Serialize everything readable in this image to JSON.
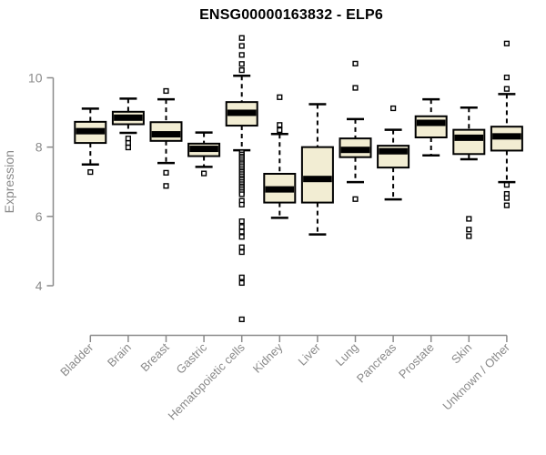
{
  "title": "ENSG00000163832 - ELP6",
  "chart_data": {
    "type": "boxplot",
    "title": "ENSG00000163832 - ELP6",
    "xlabel": "",
    "ylabel": "Expression",
    "yticks": [
      4,
      6,
      8,
      10
    ],
    "ylim": [
      2.8,
      11.5
    ],
    "grid": false,
    "legend": "none",
    "categories": [
      "Bladder",
      "Brain",
      "Breast",
      "Gastric",
      "Hematopoietic cells",
      "Kidney",
      "Liver",
      "Lung",
      "Pancreas",
      "Prostate",
      "Skin",
      "Unknown / Other"
    ],
    "series": [
      {
        "category": "Bladder",
        "whisker_low": 7.5,
        "q1": 8.12,
        "median": 8.46,
        "q3": 8.73,
        "whisker_high": 9.11,
        "outliers": [
          7.28
        ]
      },
      {
        "category": "Brain",
        "whisker_low": 8.41,
        "q1": 8.66,
        "median": 8.85,
        "q3": 9.02,
        "whisker_high": 9.4,
        "outliers": [
          8.25,
          8.12,
          7.99
        ]
      },
      {
        "category": "Breast",
        "whisker_low": 7.54,
        "q1": 8.18,
        "median": 8.37,
        "q3": 8.72,
        "whisker_high": 9.38,
        "outliers": [
          9.62,
          7.26,
          6.88
        ]
      },
      {
        "category": "Gastric",
        "whisker_low": 7.43,
        "q1": 7.74,
        "median": 7.95,
        "q3": 8.1,
        "whisker_high": 8.42,
        "outliers": [
          7.24
        ]
      },
      {
        "category": "Hematopoietic cells",
        "whisker_low": 7.91,
        "q1": 8.62,
        "median": 8.99,
        "q3": 9.3,
        "whisker_high": 10.06,
        "outliers": [
          11.15,
          10.92,
          10.66,
          10.4,
          10.22,
          7.85,
          7.79,
          7.73,
          7.68,
          7.62,
          7.56,
          7.51,
          7.45,
          7.39,
          7.33,
          7.28,
          7.22,
          7.16,
          7.1,
          7.05,
          6.99,
          6.93,
          6.87,
          6.82,
          6.76,
          6.7,
          6.64,
          6.45,
          6.34,
          5.86,
          5.7,
          5.56,
          5.41,
          5.11,
          4.97,
          4.24,
          4.08,
          3.03
        ]
      },
      {
        "category": "Kidney",
        "whisker_low": 5.96,
        "q1": 6.4,
        "median": 6.78,
        "q3": 7.23,
        "whisker_high": 8.38,
        "outliers": [
          9.44,
          8.64,
          8.49
        ]
      },
      {
        "category": "Liver",
        "whisker_low": 5.48,
        "q1": 6.4,
        "median": 7.08,
        "q3": 8.0,
        "whisker_high": 9.24,
        "outliers": []
      },
      {
        "category": "Lung",
        "whisker_low": 6.99,
        "q1": 7.71,
        "median": 7.92,
        "q3": 8.25,
        "whisker_high": 8.81,
        "outliers": [
          10.41,
          9.71,
          6.5
        ]
      },
      {
        "category": "Pancreas",
        "whisker_low": 6.49,
        "q1": 7.41,
        "median": 7.88,
        "q3": 8.04,
        "whisker_high": 8.5,
        "outliers": [
          9.12
        ]
      },
      {
        "category": "Prostate",
        "whisker_low": 7.76,
        "q1": 8.28,
        "median": 8.7,
        "q3": 8.89,
        "whisker_high": 9.38,
        "outliers": []
      },
      {
        "category": "Skin",
        "whisker_low": 7.65,
        "q1": 7.8,
        "median": 8.27,
        "q3": 8.5,
        "whisker_high": 9.14,
        "outliers": [
          5.93,
          5.62,
          5.43
        ]
      },
      {
        "category": "Unknown / Other",
        "whisker_low": 6.99,
        "q1": 7.9,
        "median": 8.31,
        "q3": 8.59,
        "whisker_high": 9.53,
        "outliers": [
          10.99,
          10.01,
          9.68,
          6.91,
          6.65,
          6.53,
          6.32
        ]
      }
    ],
    "colors": {
      "box_fill": "#f2edd3",
      "box_border": "#000000",
      "median": "#000000",
      "whisker": "#000000",
      "outlier_fill": "#ffffff",
      "axis": "#8a8a8a",
      "label": "#8a8a8a",
      "title": "#000000",
      "background": "#ffffff"
    }
  }
}
